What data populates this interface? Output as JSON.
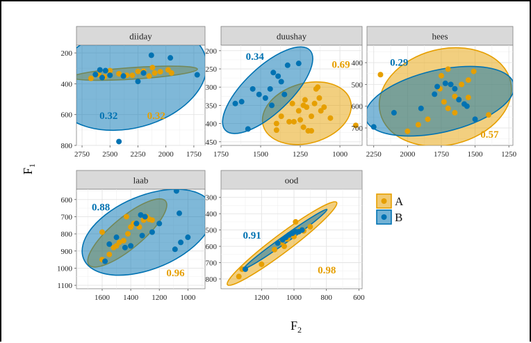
{
  "chart_data": {
    "type": "scatter",
    "xlabel": "F",
    "xlabel_sub": "2",
    "ylabel": "F",
    "ylabel_sub": "1",
    "x_reversed": true,
    "y_reversed": true,
    "grid": true,
    "legend_position": "right",
    "series": [
      {
        "name": "A",
        "color": "#E69F00"
      },
      {
        "name": "B",
        "color": "#0072B2"
      }
    ],
    "panels": [
      {
        "title": "diiday",
        "xlim": [
          2800,
          1650
        ],
        "ylim": [
          150,
          800
        ],
        "xticks": [
          2750,
          2500,
          2250,
          2000,
          1750
        ],
        "yticks": [
          200,
          400,
          600,
          800
        ],
        "corr": {
          "A": "0.32",
          "B": "0.32"
        },
        "points": {
          "A": [
            [
              2670,
              365
            ],
            [
              2600,
              340
            ],
            [
              2500,
              315
            ],
            [
              2420,
              335
            ],
            [
              2300,
              345
            ],
            [
              2200,
              318
            ],
            [
              2150,
              350
            ],
            [
              2100,
              330
            ],
            [
              2050,
              322
            ],
            [
              1950,
              330
            ],
            [
              2250,
              320
            ],
            [
              2350,
              345
            ],
            [
              2550,
              355
            ],
            [
              1980,
              310
            ],
            [
              2120,
              295
            ]
          ],
          "B": [
            [
              2630,
              340
            ],
            [
              2590,
              310
            ],
            [
              2540,
              315
            ],
            [
              2500,
              345
            ],
            [
              2380,
              350
            ],
            [
              2250,
              385
            ],
            [
              2200,
              330
            ],
            [
              2130,
              215
            ],
            [
              1960,
              232
            ],
            [
              1720,
              342
            ],
            [
              2420,
              775
            ],
            [
              2570,
              360
            ]
          ]
        }
      },
      {
        "title": "duushay",
        "xlim": [
          1750,
          860
        ],
        "ylim": [
          185,
          460
        ],
        "xticks": [
          1750,
          1500,
          1250,
          1000
        ],
        "yticks": [
          200,
          250,
          300,
          350,
          400,
          450
        ],
        "corr": {
          "A": "0.69",
          "B": "0.34"
        },
        "points": {
          "A": [
            [
              1400,
              400
            ],
            [
              1320,
              395
            ],
            [
              1260,
              365
            ],
            [
              1230,
              350
            ],
            [
              1210,
              355
            ],
            [
              1180,
              380
            ],
            [
              1150,
              305
            ],
            [
              1140,
              300
            ],
            [
              1130,
              330
            ],
            [
              1100,
              355
            ],
            [
              1230,
              410
            ],
            [
              1200,
              420
            ],
            [
              1250,
              390
            ],
            [
              1060,
              385
            ],
            [
              1300,
              345
            ],
            [
              1370,
              380
            ],
            [
              1160,
              345
            ],
            [
              1400,
              418
            ],
            [
              1220,
              335
            ],
            [
              1120,
              365
            ],
            [
              900,
              405
            ],
            [
              1290,
              395
            ],
            [
              1180,
              420
            ]
          ],
          "B": [
            [
              1660,
              345
            ],
            [
              1620,
              340
            ],
            [
              1580,
              415
            ],
            [
              1550,
              305
            ],
            [
              1510,
              320
            ],
            [
              1470,
              330
            ],
            [
              1440,
              305
            ],
            [
              1420,
              260
            ],
            [
              1390,
              270
            ],
            [
              1370,
              285
            ],
            [
              1330,
              240
            ],
            [
              1260,
              235
            ],
            [
              1430,
              350
            ],
            [
              1350,
              320
            ]
          ]
        }
      },
      {
        "title": "hees",
        "xlim": [
          2300,
          1220
        ],
        "ylim": [
          320,
          780
        ],
        "xticks": [
          2250,
          2000,
          1750,
          1500,
          1250
        ],
        "yticks": [
          400,
          500,
          600,
          700
        ],
        "corr": {
          "A": "0.57",
          "B": "0.29"
        },
        "points": {
          "A": [
            [
              2200,
              455
            ],
            [
              2000,
              715
            ],
            [
              1920,
              685
            ],
            [
              1850,
              660
            ],
            [
              1760,
              520
            ],
            [
              1730,
              580
            ],
            [
              1700,
              610
            ],
            [
              1650,
              555
            ],
            [
              1600,
              500
            ],
            [
              1550,
              480
            ],
            [
              1510,
              440
            ],
            [
              1700,
              430
            ],
            [
              1400,
              640
            ],
            [
              1750,
              460
            ],
            [
              1650,
              630
            ],
            [
              1550,
              560
            ]
          ],
          "B": [
            [
              2250,
              695
            ],
            [
              2100,
              630
            ],
            [
              1900,
              610
            ],
            [
              1800,
              545
            ],
            [
              1780,
              510
            ],
            [
              1720,
              495
            ],
            [
              1680,
              500
            ],
            [
              1650,
              520
            ],
            [
              1620,
              570
            ],
            [
              1580,
              590
            ],
            [
              1560,
              600
            ],
            [
              1500,
              660
            ]
          ]
        }
      },
      {
        "title": "laab",
        "xlim": [
          1780,
          880
        ],
        "ylim": [
          540,
          1120
        ],
        "xticks": [
          1600,
          1400,
          1200,
          1000
        ],
        "yticks": [
          600,
          700,
          800,
          900,
          1000,
          1100
        ],
        "corr": {
          "A": "0.96",
          "B": "0.88"
        },
        "points": {
          "A": [
            [
              1600,
              950
            ],
            [
              1550,
              920
            ],
            [
              1520,
              880
            ],
            [
              1480,
              850
            ],
            [
              1450,
              840
            ],
            [
              1420,
              800
            ],
            [
              1400,
              760
            ],
            [
              1380,
              740
            ],
            [
              1340,
              760
            ],
            [
              1310,
              720
            ],
            [
              1290,
              700
            ],
            [
              1270,
              715
            ],
            [
              1250,
              720
            ],
            [
              1600,
              790
            ],
            [
              1500,
              870
            ],
            [
              1430,
              700
            ]
          ],
          "B": [
            [
              1580,
              960
            ],
            [
              1550,
              860
            ],
            [
              1500,
              820
            ],
            [
              1440,
              880
            ],
            [
              1400,
              870
            ],
            [
              1360,
              740
            ],
            [
              1330,
              690
            ],
            [
              1300,
              700
            ],
            [
              1250,
              790
            ],
            [
              1200,
              740
            ],
            [
              1080,
              550
            ],
            [
              1060,
              680
            ],
            [
              1050,
              850
            ],
            [
              1000,
              820
            ],
            [
              1090,
              890
            ],
            [
              1320,
              810
            ]
          ]
        }
      },
      {
        "title": "ood",
        "xlim": [
          1450,
          580
        ],
        "ylim": [
          250,
          860
        ],
        "xticks": [
          1200,
          1000,
          800,
          600
        ],
        "yticks": [
          300,
          400,
          500,
          600,
          700,
          800
        ],
        "corr": {
          "A": "0.98",
          "B": "0.91"
        },
        "points": {
          "A": [
            [
              1340,
              785
            ],
            [
              1320,
              740
            ],
            [
              1200,
              710
            ],
            [
              1120,
              620
            ],
            [
              1080,
              575
            ],
            [
              1040,
              555
            ],
            [
              1000,
              540
            ],
            [
              990,
              450
            ],
            [
              960,
              500
            ],
            [
              940,
              505
            ],
            [
              900,
              480
            ],
            [
              1060,
              600
            ],
            [
              1010,
              520
            ]
          ],
          "B": [
            [
              1300,
              740
            ],
            [
              1100,
              580
            ],
            [
              1070,
              560
            ],
            [
              1050,
              545
            ],
            [
              1030,
              530
            ],
            [
              1010,
              520
            ],
            [
              990,
              510
            ],
            [
              970,
              510
            ],
            [
              950,
              500
            ]
          ]
        }
      }
    ]
  }
}
